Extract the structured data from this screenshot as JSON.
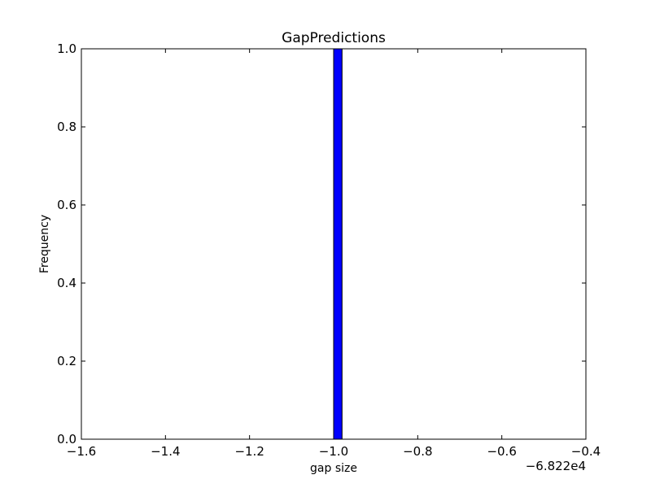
{
  "chart_data": {
    "type": "bar",
    "title": "GapPredictions",
    "xlabel": "gap size",
    "ylabel": "Frequency",
    "x_offset_label": "−6.822e4",
    "xlim": [
      -1.6,
      -0.4
    ],
    "ylim": [
      0.0,
      1.0
    ],
    "xticks": [
      -1.6,
      -1.4,
      -1.2,
      -1.0,
      -0.8,
      -0.6,
      -0.4
    ],
    "xtick_labels": [
      "−1.6",
      "−1.4",
      "−1.2",
      "−1.0",
      "−0.8",
      "−0.6",
      "−0.4"
    ],
    "yticks": [
      0.0,
      0.2,
      0.4,
      0.6,
      0.8,
      1.0
    ],
    "ytick_labels": [
      "0.0",
      "0.2",
      "0.4",
      "0.6",
      "0.8",
      "1.0"
    ],
    "grid": false,
    "bars": [
      {
        "x0": -1.5,
        "x1": -1.47,
        "value": 0
      },
      {
        "x0": -1.0,
        "x1": -0.98,
        "value": 1.0
      },
      {
        "x0": -0.53,
        "x1": -0.5,
        "value": 0
      }
    ],
    "colors": {
      "bar_fill": "#0000ff",
      "bar_edge": "#000000",
      "axes": "#000000"
    }
  }
}
